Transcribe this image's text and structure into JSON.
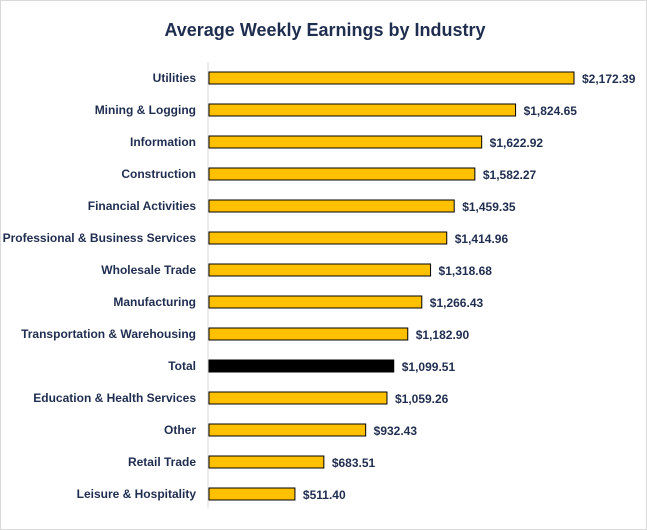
{
  "chart_data": {
    "type": "bar",
    "orientation": "horizontal",
    "title": "Average Weekly Earnings by Industry",
    "xlabel": "",
    "ylabel": "",
    "categories": [
      "Utilities",
      "Mining & Logging",
      "Information",
      "Construction",
      "Financial Activities",
      "Professional & Business Services",
      "Wholesale Trade",
      "Manufacturing",
      "Transportation & Warehousing",
      "Total",
      "Education & Health Services",
      "Other",
      "Retail Trade",
      "Leisure & Hospitality"
    ],
    "values": [
      2172.39,
      1824.65,
      1622.92,
      1582.27,
      1459.35,
      1414.96,
      1318.68,
      1266.43,
      1182.9,
      1099.51,
      1059.26,
      932.43,
      683.51,
      511.4
    ],
    "value_labels": [
      "$2,172.39",
      "$1,824.65",
      "$1,622.92",
      "$1,582.27",
      "$1,459.35",
      "$1,414.96",
      "$1,318.68",
      "$1,266.43",
      "$1,182.90",
      "$1,099.51",
      "$1,059.26",
      "$932.43",
      "$683.51",
      "$511.40"
    ],
    "xlim": [
      0,
      2500
    ],
    "grid": false,
    "legend": "none",
    "bar_color": "#ffc000",
    "highlight_category": "Total",
    "highlight_color": "#000000",
    "bar_outline_color": "#000000",
    "text_color": "#1f2d4f"
  }
}
